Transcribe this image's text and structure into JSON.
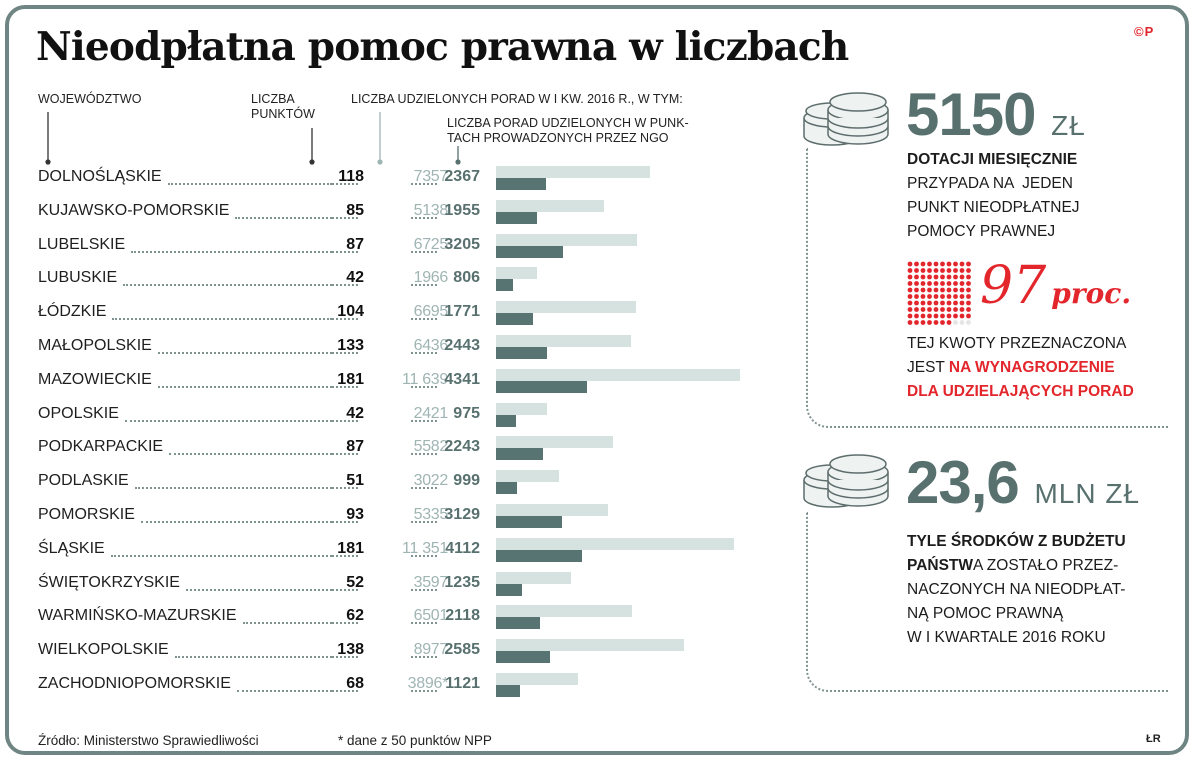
{
  "title": "Nieodpłatna pomoc prawna w liczbach",
  "logo": "©P",
  "headers": {
    "region": "WOJEWÓDZTWO",
    "points_line1": "LICZBA",
    "points_line2": "PUNKTÓW",
    "advice": "LICZBA UDZIELONYCH PORAD W I KW. 2016 R., W TYM:",
    "ngo_line1": "LICZBA PORAD UDZIELONYCH W PUNK-",
    "ngo_line2": "TACH PROWADZONYCH PRZEZ NGO"
  },
  "chart_data": {
    "type": "bar",
    "categories": [
      "DOLNOŚLĄSKIE",
      "KUJAWSKO-POMORSKIE",
      "LUBELSKIE",
      "LUBUSKIE",
      "ŁÓDZKIE",
      "MAŁOPOLSKIE",
      "MAZOWIECKIE",
      "OPOLSKIE",
      "PODKARPACKIE",
      "PODLASKIE",
      "POMORSKIE",
      "ŚLĄSKIE",
      "ŚWIĘTOKRZYSKIE",
      "WARMIŃSKO-MAZURSKIE",
      "WIELKOPOLSKIE",
      "ZACHODNIOPOMORSKIE"
    ],
    "points": [
      118,
      85,
      87,
      42,
      104,
      133,
      181,
      42,
      87,
      51,
      93,
      181,
      52,
      62,
      138,
      68
    ],
    "points_labels": [
      "118",
      "85",
      "87",
      "42",
      "104",
      "133",
      "181",
      "42",
      "87",
      "51",
      "93",
      "181",
      "52",
      "62",
      "138",
      "68"
    ],
    "series": [
      {
        "name": "LICZBA UDZIELONYCH PORAD W I KW. 2016 R.",
        "values": [
          7357,
          5138,
          6725,
          1966,
          6695,
          6436,
          11639,
          2421,
          5582,
          3022,
          5335,
          11351,
          3597,
          6501,
          8977,
          3896
        ],
        "labels": [
          "7357",
          "5138",
          "6725",
          "1966",
          "6695",
          "6436",
          "11 639",
          "2421",
          "5582",
          "3022",
          "5335",
          "11 351",
          "3597",
          "6501",
          "8977",
          "3896*"
        ],
        "color": "#d5e2e0"
      },
      {
        "name": "LICZBA PORAD UDZIELONYCH W PUNKTACH PROWADZONYCH PRZEZ NGO",
        "values": [
          2367,
          1955,
          3205,
          806,
          1771,
          2443,
          4341,
          975,
          2243,
          999,
          3129,
          4112,
          1235,
          2118,
          2585,
          1121
        ],
        "labels": [
          "2367",
          "1955",
          "3205",
          "806",
          "1771",
          "2443",
          "4341",
          "975",
          "2243",
          "999",
          "3129",
          "4112",
          "1235",
          "2118",
          "2585",
          "1121"
        ],
        "color": "#577472"
      }
    ],
    "xlim": [
      0,
      11639
    ]
  },
  "panel1": {
    "big_value": "5150",
    "big_unit": "ZŁ",
    "line1": "DOTACJI MIESIĘCZNIE",
    "line2": "PRZYPADA NA  JEDEN",
    "line3": "PUNKT NIEODPŁATNEJ",
    "line4": "POMOCY PRAWNEJ",
    "pct_value": "97",
    "pct_unit": "proc.",
    "pct_share": 0.97,
    "line5": "TEJ KWOTY PRZEZNACZONA",
    "line6a": "JEST ",
    "line6b": "NA WYNAGRODZENIE",
    "line7": "DLA UDZIELAJĄCYCH PORAD",
    "accent": "#e3262c"
  },
  "panel2": {
    "big_value": "23,6",
    "big_unit": "MLN ZŁ",
    "line1": "TYLE ŚRODKÓW Z BUDŻETU",
    "line2a": "PAŃSTW",
    "line2b": "A ZOSTAŁO PRZEZ-",
    "line3": "NACZONYCH NA NIEODPŁAT-",
    "line4": "NĄ POMOC PRAWNĄ",
    "line5": "W I KWARTALE 2016 ROKU"
  },
  "footer": {
    "source": "Źródło: Ministerstwo Sprawiedliwości",
    "note": "* dane z 50 punktów NPP",
    "credit": "ŁR"
  }
}
